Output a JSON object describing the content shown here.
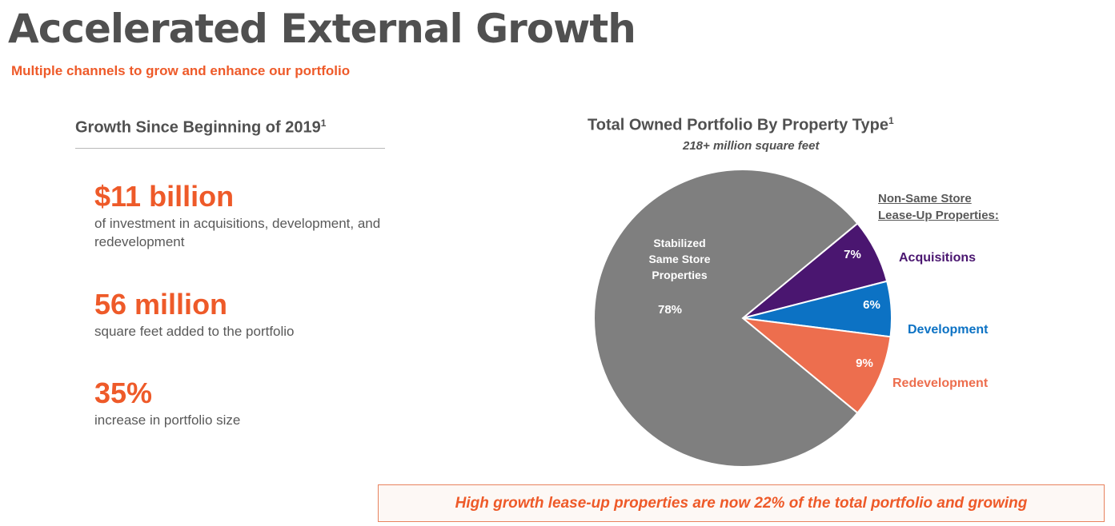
{
  "page": {
    "title": "Accelerated External Growth",
    "subtitle": "Multiple channels to grow and enhance our portfolio"
  },
  "left_panel": {
    "header": "Growth Since Beginning of 2019",
    "header_footnote": "1",
    "stats": [
      {
        "value": "$11 billion",
        "description": "of investment in acquisitions, development, and redevelopment"
      },
      {
        "value": "56 million",
        "description": "square feet added to the portfolio"
      },
      {
        "value": "35%",
        "description": "increase in portfolio size"
      }
    ]
  },
  "chart_data": {
    "type": "pie",
    "title": "Total Owned Portfolio By Property Type",
    "title_footnote": "1",
    "subtitle": "218+ million square feet",
    "legend_group_label_line1": "Non-Same Store",
    "legend_group_label_line2": "Lease-Up Properties:",
    "slices": [
      {
        "label_lines": [
          "Stabilized",
          "Same Store",
          "Properties"
        ],
        "value": 78,
        "display": "78%",
        "color": "#7f7f7f"
      },
      {
        "label": "Acquisitions",
        "value": 7,
        "display": "7%",
        "color": "#4a1670"
      },
      {
        "label": "Development",
        "value": 6,
        "display": "6%",
        "color": "#0c72c4"
      },
      {
        "label": "Redevelopment",
        "value": 9,
        "display": "9%",
        "color": "#ed6e4e"
      }
    ],
    "label_colors": {
      "Acquisitions": "#4a1670",
      "Development": "#0c72c4",
      "Redevelopment": "#ed6e4e"
    }
  },
  "callout": {
    "text": "High growth lease-up properties are now 22% of the total portfolio and growing"
  }
}
